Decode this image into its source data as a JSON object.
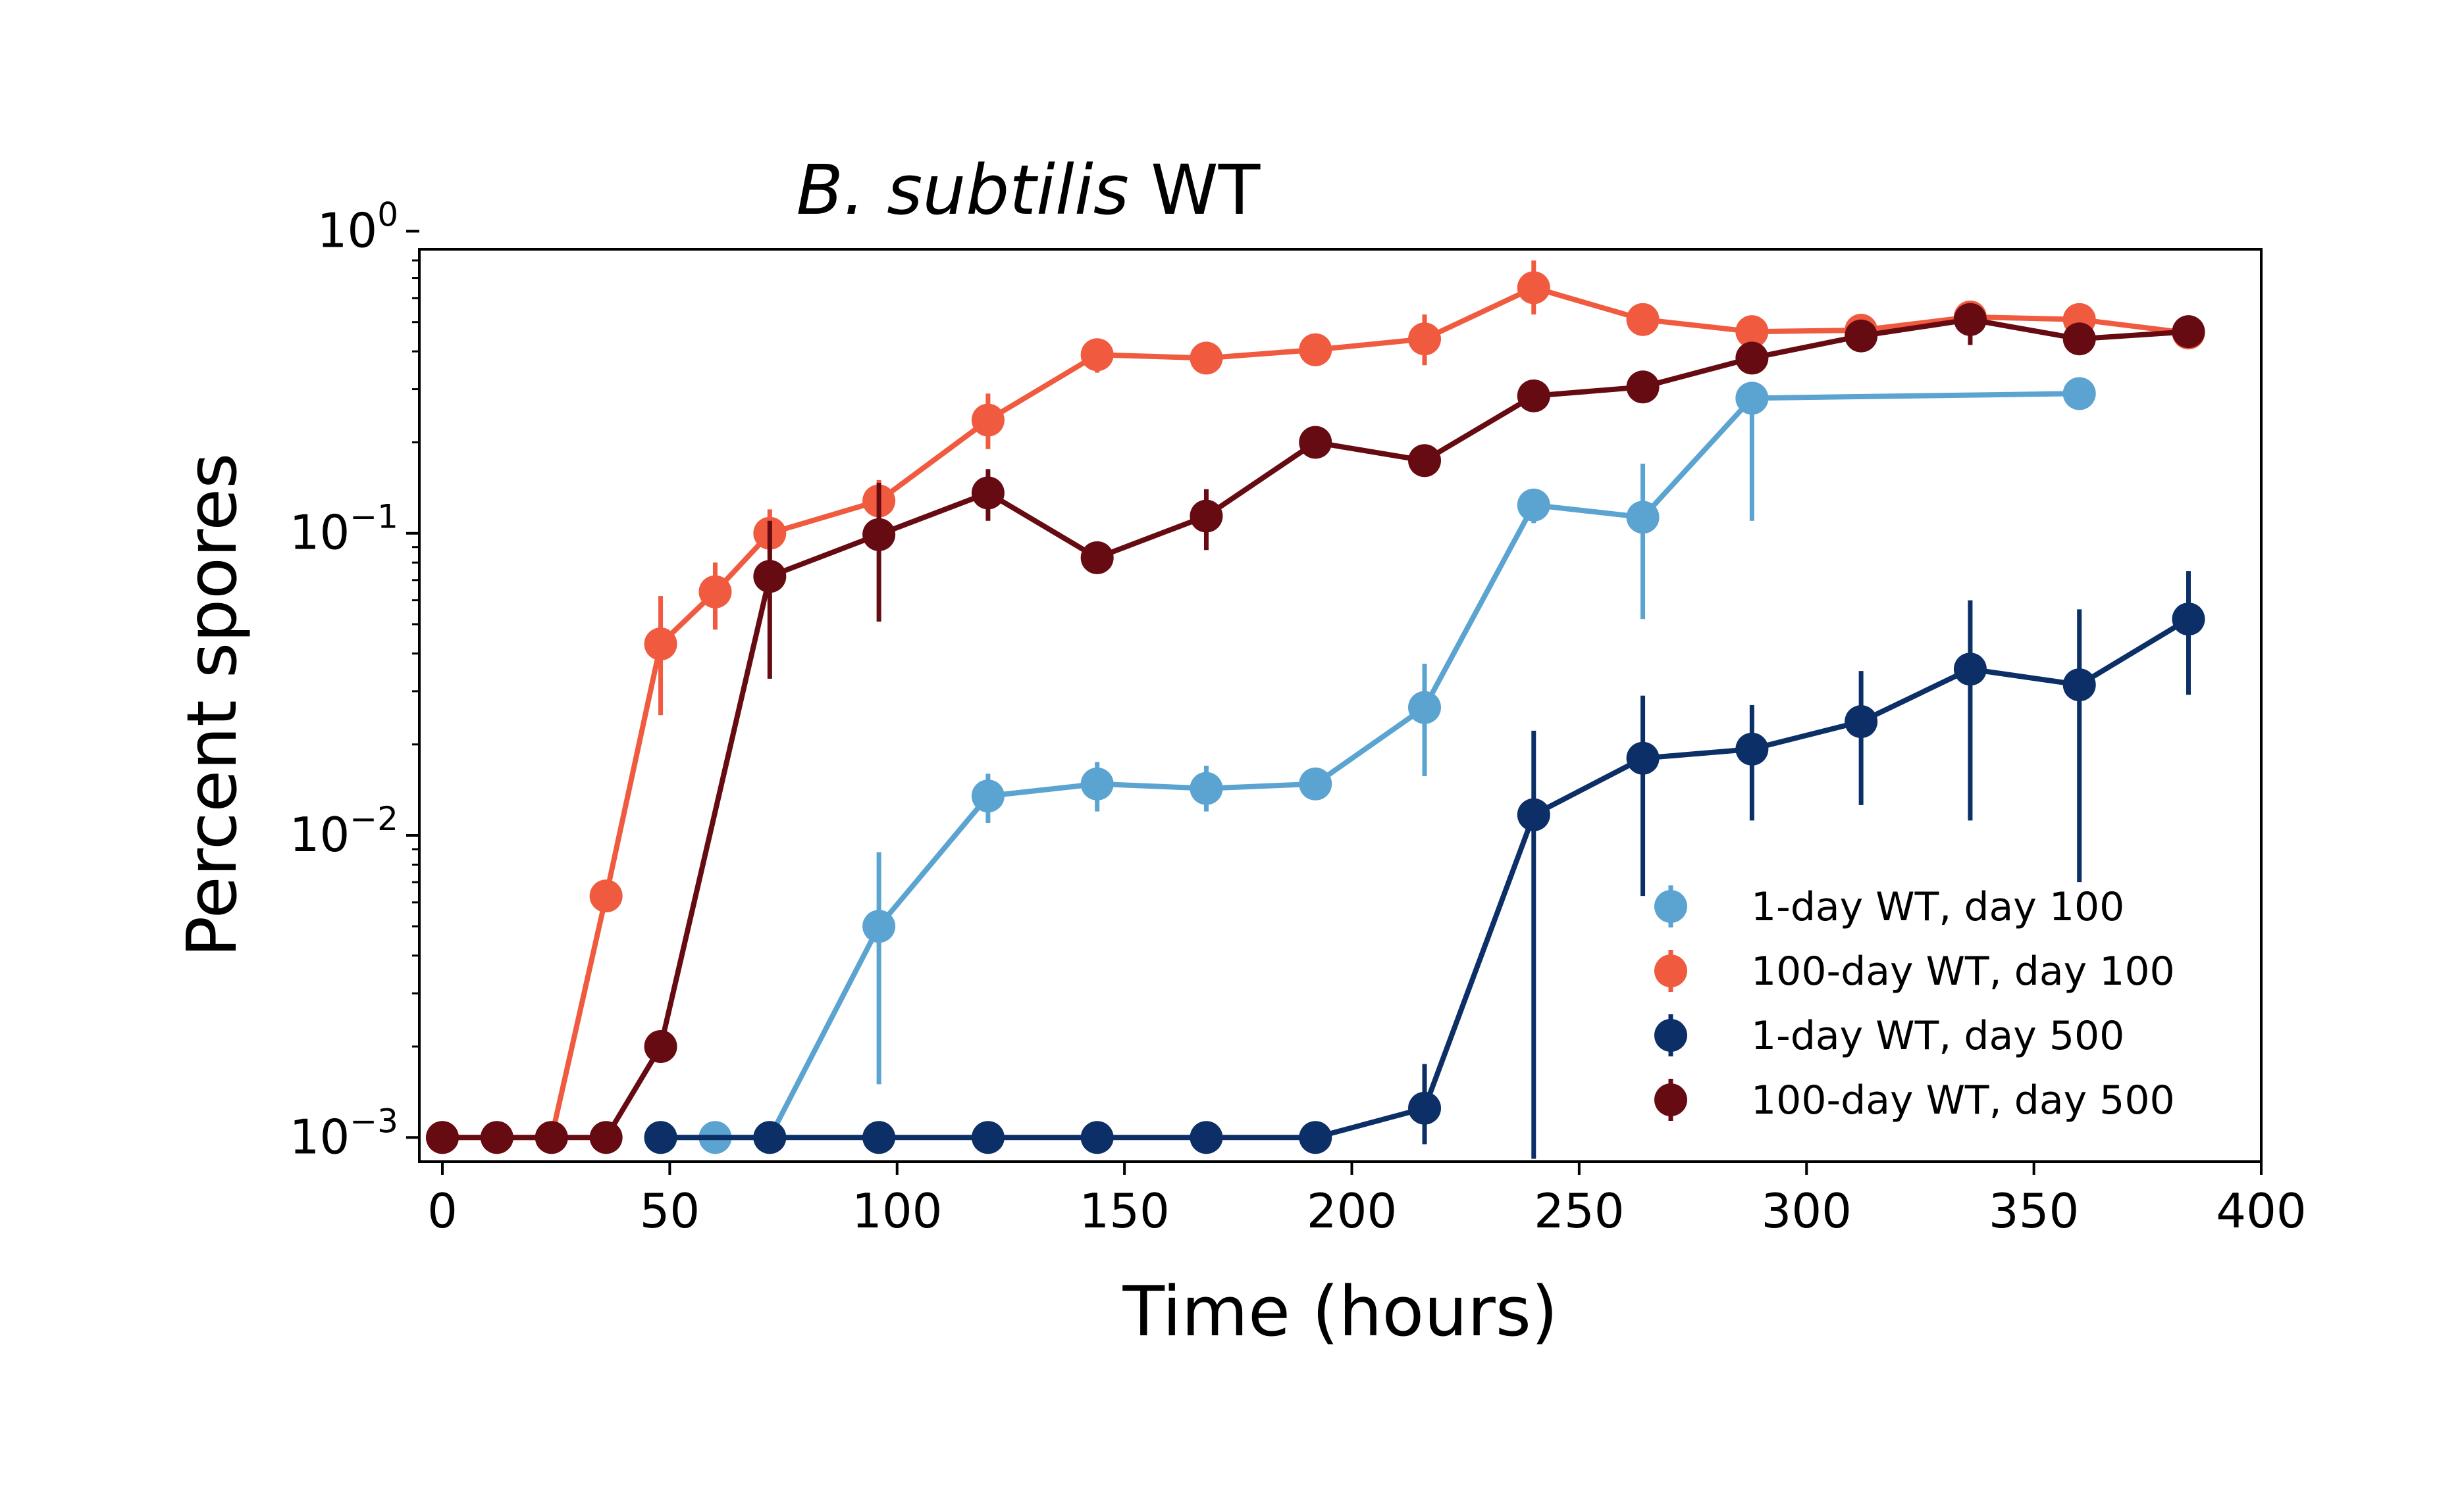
{
  "chart_data": {
    "type": "scatter",
    "title_italic": "B. subtilis",
    "title_rest": " WT",
    "xlabel": "Time (hours)",
    "ylabel": "Percent spores",
    "xlim": [
      -5,
      400
    ],
    "ylim": [
      0.00085,
      1.1
    ],
    "yscale": "log",
    "x_ticks": [
      0,
      50,
      100,
      150,
      200,
      250,
      300,
      350,
      400
    ],
    "y_ticks": [
      {
        "value": 0.001,
        "base": "10",
        "exp": "−3"
      },
      {
        "value": 0.01,
        "base": "10",
        "exp": "−2"
      },
      {
        "value": 0.1,
        "base": "10",
        "exp": "−1"
      },
      {
        "value": 1,
        "base": "10",
        "exp": "0"
      }
    ],
    "grid": false,
    "legend_position": "lower-right",
    "series": [
      {
        "name": "1-day WT, day 100",
        "color": "#5BA3D0",
        "x": [
          48,
          60,
          72,
          96,
          120,
          144,
          168,
          192,
          216,
          240,
          264,
          288,
          360
        ],
        "y": [
          0.001,
          0.001,
          0.001,
          0.005,
          0.0135,
          0.0148,
          0.0143,
          0.0148,
          0.0265,
          0.124,
          0.113,
          0.28,
          0.29
        ],
        "err_low": [
          0,
          0,
          0,
          0.0015,
          0.011,
          0.012,
          0.012,
          0.0135,
          0.0157,
          0.108,
          0.052,
          0.11,
          0.29
        ],
        "err_high": [
          0,
          0,
          0,
          0.0088,
          0.016,
          0.0175,
          0.017,
          0.0158,
          0.037,
          0.139,
          0.17,
          0.3,
          0.29
        ]
      },
      {
        "name": "100-day WT, day 100",
        "color": "#F05A3F",
        "x": [
          0,
          12,
          24,
          36,
          48,
          60,
          72,
          96,
          120,
          144,
          168,
          192,
          216,
          240,
          264,
          288,
          312,
          336,
          360,
          384
        ],
        "y": [
          0.001,
          0.001,
          0.001,
          0.0063,
          0.043,
          0.064,
          0.1,
          0.128,
          0.237,
          0.39,
          0.38,
          0.405,
          0.44,
          0.65,
          0.51,
          0.465,
          0.47,
          0.52,
          0.51,
          0.46
        ],
        "err_low": [
          0.001,
          0.001,
          0.001,
          0.0063,
          0.025,
          0.048,
          0.084,
          0.106,
          0.19,
          0.34,
          0.35,
          0.38,
          0.36,
          0.53,
          0.48,
          0.44,
          0.45,
          0.49,
          0.48,
          0.44
        ],
        "err_high": [
          0.001,
          0.001,
          0.001,
          0.0063,
          0.062,
          0.08,
          0.12,
          0.15,
          0.29,
          0.42,
          0.41,
          0.43,
          0.53,
          0.8,
          0.55,
          0.49,
          0.49,
          0.55,
          0.54,
          0.48
        ]
      },
      {
        "name": "1-day WT, day 500",
        "color": "#0B2F66",
        "x": [
          48,
          72,
          96,
          120,
          144,
          168,
          192,
          216,
          240,
          264,
          288,
          312,
          336,
          360,
          384
        ],
        "y": [
          0.001,
          0.001,
          0.001,
          0.001,
          0.001,
          0.001,
          0.001,
          0.00125,
          0.0117,
          0.018,
          0.0193,
          0.0238,
          0.0355,
          0.0315,
          0.052
        ],
        "err_low": [
          0.001,
          0.001,
          0.001,
          0.001,
          0.001,
          0.001,
          0.001,
          0.00095,
          0.00085,
          0.0063,
          0.0112,
          0.0126,
          0.0112,
          0.007,
          0.0292
        ],
        "err_high": [
          0.001,
          0.001,
          0.001,
          0.001,
          0.001,
          0.001,
          0.001,
          0.00175,
          0.0222,
          0.029,
          0.027,
          0.035,
          0.06,
          0.056,
          0.075
        ]
      },
      {
        "name": "100-day WT, day 500",
        "color": "#660B12",
        "x": [
          0,
          12,
          24,
          36,
          48,
          72,
          96,
          120,
          144,
          168,
          192,
          216,
          240,
          264,
          288,
          312,
          336,
          360,
          384
        ],
        "y": [
          0.001,
          0.001,
          0.001,
          0.001,
          0.002,
          0.072,
          0.099,
          0.136,
          0.083,
          0.114,
          0.2,
          0.174,
          0.285,
          0.305,
          0.38,
          0.45,
          0.51,
          0.44,
          0.465
        ],
        "err_low": [
          0.001,
          0.001,
          0.001,
          0.001,
          0.002,
          0.033,
          0.051,
          0.11,
          0.083,
          0.088,
          0.2,
          0.174,
          0.285,
          0.305,
          0.36,
          0.43,
          0.42,
          0.41,
          0.45
        ],
        "err_high": [
          0.001,
          0.001,
          0.001,
          0.001,
          0.002,
          0.11,
          0.147,
          0.163,
          0.083,
          0.14,
          0.2,
          0.174,
          0.285,
          0.305,
          0.4,
          0.47,
          0.56,
          0.47,
          0.48
        ]
      }
    ]
  }
}
